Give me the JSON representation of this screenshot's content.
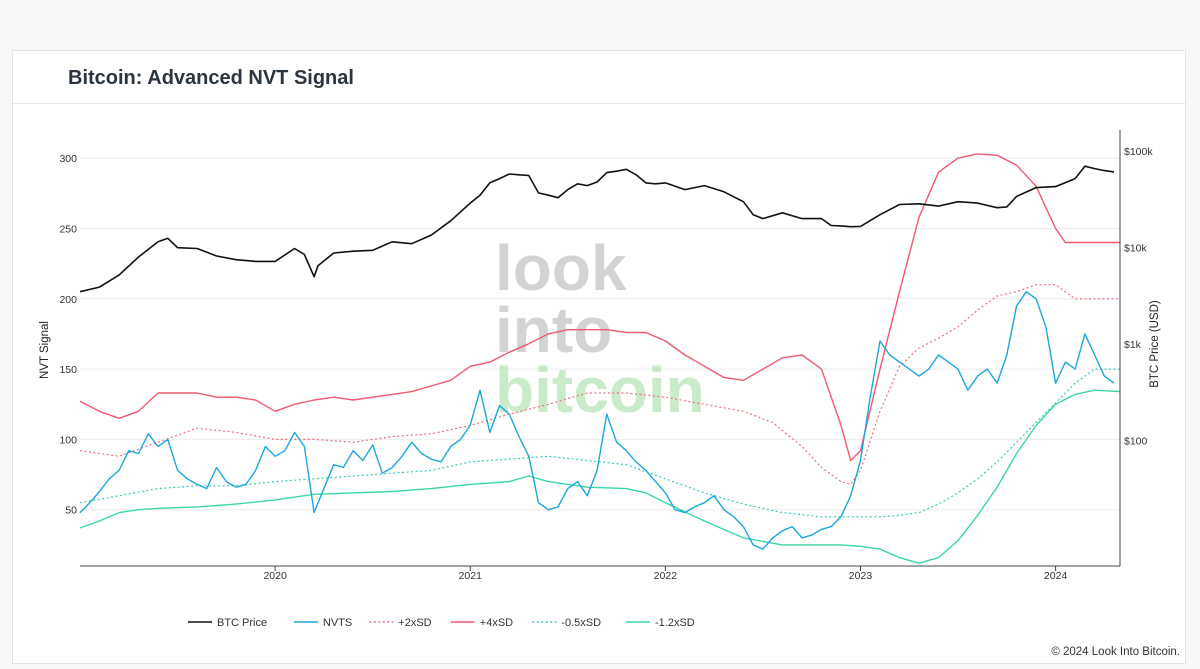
{
  "header": {
    "title": "Bitcoin: Advanced NVT Signal"
  },
  "footer": {
    "copyright": "© 2024 Look Into Bitcoin."
  },
  "watermark": {
    "line1": "look",
    "line2": "into",
    "line3": "bitcoin"
  },
  "colors": {
    "btc_price": "#111111",
    "nvts": "#1aa7e0",
    "plus2sd": "#f06d7d",
    "plus4sd": "#ef5a6f",
    "minus05sd": "#35c9b7",
    "minus12sd": "#3bd6a8",
    "grid": "#ececec"
  },
  "chart_data": {
    "type": "line",
    "title": "Bitcoin: Advanced NVT Signal",
    "xlabel": "",
    "ylabel": "NVT Signal",
    "y2label": "BTC Price (USD)",
    "ylim": [
      10,
      320
    ],
    "y2lim_log10": [
      0.7,
      5.22
    ],
    "y2_scale": "log",
    "yticks": [
      50,
      100,
      150,
      200,
      250,
      300
    ],
    "y2ticks": [
      {
        "label": "$100",
        "value": 100
      },
      {
        "label": "$1k",
        "value": 1000
      },
      {
        "label": "$10k",
        "value": 10000
      },
      {
        "label": "$100k",
        "value": 100000
      }
    ],
    "xlim": [
      2019.0,
      2024.33
    ],
    "xticks": [
      {
        "label": "2020",
        "value": 2020
      },
      {
        "label": "2021",
        "value": 2021
      },
      {
        "label": "2022",
        "value": 2022
      },
      {
        "label": "2023",
        "value": 2023
      },
      {
        "label": "2024",
        "value": 2024
      }
    ],
    "grid": true,
    "legend_position": "bottom",
    "series": [
      {
        "name": "BTC Price",
        "axis": "y2",
        "style": "solid",
        "color_key": "btc_price",
        "x": [
          2019.0,
          2019.1,
          2019.2,
          2019.3,
          2019.4,
          2019.45,
          2019.5,
          2019.6,
          2019.7,
          2019.8,
          2019.9,
          2020.0,
          2020.1,
          2020.15,
          2020.2,
          2020.22,
          2020.3,
          2020.4,
          2020.5,
          2020.6,
          2020.7,
          2020.8,
          2020.9,
          2021.0,
          2021.05,
          2021.1,
          2021.15,
          2021.2,
          2021.25,
          2021.3,
          2021.35,
          2021.4,
          2021.45,
          2021.5,
          2021.55,
          2021.6,
          2021.65,
          2021.7,
          2021.75,
          2021.8,
          2021.85,
          2021.9,
          2021.95,
          2022.0,
          2022.1,
          2022.2,
          2022.3,
          2022.4,
          2022.45,
          2022.5,
          2022.6,
          2022.7,
          2022.8,
          2022.85,
          2022.9,
          2022.95,
          2023.0,
          2023.1,
          2023.2,
          2023.3,
          2023.4,
          2023.5,
          2023.6,
          2023.7,
          2023.75,
          2023.8,
          2023.9,
          2024.0,
          2024.1,
          2024.15,
          2024.2,
          2024.25,
          2024.3
        ],
        "y": [
          3500,
          3900,
          5200,
          8000,
          11500,
          12500,
          10000,
          9800,
          8200,
          7500,
          7200,
          7200,
          9800,
          8500,
          5000,
          6500,
          8800,
          9200,
          9400,
          11500,
          11000,
          13500,
          19000,
          29000,
          35000,
          47000,
          52000,
          58000,
          57000,
          56000,
          37000,
          35000,
          33000,
          40000,
          46000,
          44000,
          48000,
          60000,
          62000,
          65000,
          57000,
          47000,
          46000,
          47000,
          40000,
          44000,
          38000,
          30000,
          22000,
          20000,
          23000,
          20000,
          20000,
          17000,
          16800,
          16500,
          16600,
          22000,
          28000,
          28500,
          27000,
          30000,
          29000,
          26000,
          26500,
          34000,
          42000,
          43000,
          52000,
          70000,
          66000,
          63000,
          61000
        ]
      },
      {
        "name": "NVTS",
        "axis": "y",
        "style": "solid",
        "color_key": "nvts",
        "x": [
          2019.0,
          2019.05,
          2019.1,
          2019.15,
          2019.2,
          2019.25,
          2019.3,
          2019.35,
          2019.4,
          2019.45,
          2019.5,
          2019.55,
          2019.6,
          2019.65,
          2019.7,
          2019.75,
          2019.8,
          2019.85,
          2019.9,
          2019.95,
          2020.0,
          2020.05,
          2020.1,
          2020.15,
          2020.2,
          2020.25,
          2020.3,
          2020.35,
          2020.4,
          2020.45,
          2020.5,
          2020.55,
          2020.6,
          2020.65,
          2020.7,
          2020.75,
          2020.8,
          2020.85,
          2020.9,
          2020.95,
          2021.0,
          2021.05,
          2021.1,
          2021.15,
          2021.2,
          2021.25,
          2021.3,
          2021.35,
          2021.4,
          2021.45,
          2021.5,
          2021.55,
          2021.6,
          2021.65,
          2021.7,
          2021.75,
          2021.8,
          2021.85,
          2021.9,
          2021.95,
          2022.0,
          2022.05,
          2022.1,
          2022.15,
          2022.2,
          2022.25,
          2022.3,
          2022.35,
          2022.4,
          2022.45,
          2022.5,
          2022.55,
          2022.6,
          2022.65,
          2022.7,
          2022.75,
          2022.8,
          2022.85,
          2022.9,
          2022.95,
          2023.0,
          2023.05,
          2023.1,
          2023.15,
          2023.2,
          2023.25,
          2023.3,
          2023.35,
          2023.4,
          2023.45,
          2023.5,
          2023.55,
          2023.6,
          2023.65,
          2023.7,
          2023.75,
          2023.8,
          2023.85,
          2023.9,
          2023.95,
          2024.0,
          2024.05,
          2024.1,
          2024.15,
          2024.2,
          2024.25,
          2024.3
        ],
        "y": [
          48,
          55,
          63,
          72,
          78,
          92,
          90,
          104,
          95,
          100,
          78,
          72,
          68,
          65,
          80,
          70,
          66,
          68,
          78,
          95,
          88,
          92,
          105,
          95,
          48,
          65,
          82,
          80,
          92,
          85,
          96,
          76,
          80,
          88,
          98,
          90,
          86,
          84,
          95,
          100,
          110,
          135,
          105,
          124,
          118,
          102,
          88,
          55,
          50,
          52,
          65,
          70,
          60,
          78,
          118,
          98,
          92,
          84,
          78,
          70,
          62,
          50,
          48,
          52,
          55,
          60,
          50,
          45,
          38,
          25,
          22,
          30,
          35,
          38,
          30,
          32,
          36,
          38,
          45,
          60,
          85,
          130,
          170,
          160,
          155,
          150,
          145,
          150,
          160,
          155,
          150,
          135,
          145,
          150,
          140,
          160,
          195,
          205,
          200,
          180,
          140,
          155,
          150,
          175,
          160,
          145,
          140
        ]
      },
      {
        "name": "+2xSD",
        "axis": "y",
        "style": "dotted",
        "color_key": "plus2sd",
        "x": [
          2019.0,
          2019.2,
          2019.4,
          2019.6,
          2019.8,
          2020.0,
          2020.2,
          2020.4,
          2020.6,
          2020.8,
          2021.0,
          2021.2,
          2021.4,
          2021.6,
          2021.8,
          2022.0,
          2022.2,
          2022.4,
          2022.55,
          2022.7,
          2022.8,
          2022.9,
          2022.95,
          2023.0,
          2023.1,
          2023.2,
          2023.3,
          2023.4,
          2023.5,
          2023.6,
          2023.7,
          2023.8,
          2023.9,
          2024.0,
          2024.1,
          2024.2,
          2024.33
        ],
        "y": [
          92,
          88,
          98,
          108,
          105,
          100,
          100,
          98,
          102,
          104,
          110,
          118,
          125,
          133,
          133,
          130,
          125,
          120,
          112,
          95,
          80,
          70,
          68,
          78,
          120,
          152,
          165,
          172,
          180,
          192,
          202,
          205,
          210,
          210,
          200,
          200,
          200
        ]
      },
      {
        "name": "+4xSD",
        "axis": "y",
        "style": "solid",
        "color_key": "plus4sd",
        "x": [
          2019.0,
          2019.1,
          2019.2,
          2019.3,
          2019.4,
          2019.5,
          2019.6,
          2019.7,
          2019.8,
          2019.9,
          2020.0,
          2020.1,
          2020.2,
          2020.3,
          2020.4,
          2020.5,
          2020.6,
          2020.7,
          2020.8,
          2020.9,
          2021.0,
          2021.1,
          2021.2,
          2021.3,
          2021.4,
          2021.5,
          2021.6,
          2021.7,
          2021.8,
          2021.9,
          2022.0,
          2022.1,
          2022.2,
          2022.3,
          2022.4,
          2022.5,
          2022.6,
          2022.7,
          2022.8,
          2022.9,
          2022.95,
          2023.0,
          2023.1,
          2023.2,
          2023.3,
          2023.4,
          2023.5,
          2023.6,
          2023.7,
          2023.8,
          2023.9,
          2024.0,
          2024.05,
          2024.1,
          2024.2,
          2024.33
        ],
        "y": [
          127,
          120,
          115,
          120,
          133,
          133,
          133,
          130,
          130,
          128,
          120,
          125,
          128,
          130,
          128,
          130,
          132,
          134,
          138,
          142,
          152,
          155,
          162,
          168,
          175,
          178,
          178,
          178,
          176,
          176,
          170,
          160,
          152,
          144,
          142,
          150,
          158,
          160,
          150,
          110,
          85,
          92,
          150,
          205,
          258,
          290,
          300,
          303,
          302,
          295,
          280,
          250,
          240,
          240,
          240,
          240
        ]
      },
      {
        "name": "-0.5xSD",
        "axis": "y",
        "style": "dotted",
        "color_key": "minus05sd",
        "x": [
          2019.0,
          2019.2,
          2019.4,
          2019.6,
          2019.8,
          2020.0,
          2020.2,
          2020.4,
          2020.6,
          2020.8,
          2021.0,
          2021.2,
          2021.4,
          2021.6,
          2021.8,
          2022.0,
          2022.2,
          2022.4,
          2022.6,
          2022.8,
          2023.0,
          2023.1,
          2023.2,
          2023.3,
          2023.4,
          2023.5,
          2023.6,
          2023.7,
          2023.8,
          2023.9,
          2024.0,
          2024.1,
          2024.2,
          2024.33
        ],
        "y": [
          55,
          60,
          65,
          67,
          67,
          70,
          72,
          74,
          76,
          78,
          84,
          86,
          88,
          85,
          82,
          72,
          62,
          54,
          48,
          45,
          45,
          45,
          46,
          48,
          54,
          62,
          72,
          84,
          98,
          112,
          126,
          140,
          150,
          150
        ]
      },
      {
        "name": "-1.2xSD",
        "axis": "y",
        "style": "solid",
        "color_key": "minus12sd",
        "x": [
          2019.0,
          2019.1,
          2019.2,
          2019.3,
          2019.4,
          2019.6,
          2019.8,
          2020.0,
          2020.2,
          2020.4,
          2020.6,
          2020.8,
          2021.0,
          2021.2,
          2021.3,
          2021.4,
          2021.6,
          2021.8,
          2021.9,
          2022.0,
          2022.2,
          2022.4,
          2022.6,
          2022.8,
          2022.9,
          2023.0,
          2023.1,
          2023.2,
          2023.3,
          2023.4,
          2023.5,
          2023.6,
          2023.7,
          2023.8,
          2023.9,
          2024.0,
          2024.1,
          2024.2,
          2024.33
        ],
        "y": [
          37,
          42,
          48,
          50,
          51,
          52,
          54,
          57,
          61,
          62,
          63,
          65,
          68,
          70,
          74,
          70,
          66,
          65,
          62,
          55,
          42,
          30,
          25,
          25,
          25,
          24,
          22,
          16,
          12,
          16,
          28,
          46,
          66,
          90,
          110,
          125,
          132,
          135,
          134
        ]
      }
    ]
  },
  "legend": [
    {
      "label": "BTC Price",
      "color_key": "btc_price",
      "style": "solid"
    },
    {
      "label": "NVTS",
      "color_key": "nvts",
      "style": "solid"
    },
    {
      "label": "+2xSD",
      "color_key": "plus2sd",
      "style": "dotted"
    },
    {
      "label": "+4xSD",
      "color_key": "plus4sd",
      "style": "solid"
    },
    {
      "label": "-0.5xSD",
      "color_key": "minus05sd",
      "style": "dotted"
    },
    {
      "label": "-1.2xSD",
      "color_key": "minus12sd",
      "style": "solid"
    }
  ]
}
